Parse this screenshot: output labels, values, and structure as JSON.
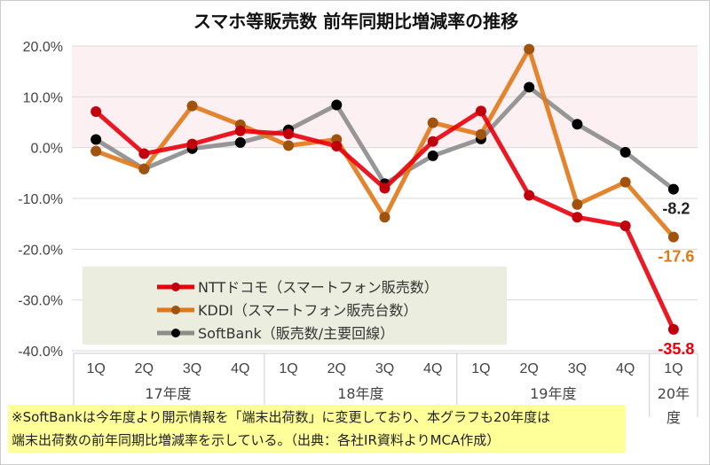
{
  "chart_data": {
    "type": "line",
    "title": "スマホ等販売数 前年同期比増減率の推移",
    "xlabel": "",
    "ylabel": "",
    "ylim": [
      -40,
      20
    ],
    "yticks": [
      "20.0%",
      "10.0%",
      "0.0%",
      "-10.0%",
      "-20.0%",
      "-30.0%",
      "-40.0%"
    ],
    "ytick_values": [
      20,
      10,
      0,
      -10,
      -20,
      -30,
      -40
    ],
    "categories": [
      "1Q",
      "2Q",
      "3Q",
      "4Q",
      "1Q",
      "2Q",
      "3Q",
      "4Q",
      "1Q",
      "2Q",
      "3Q",
      "4Q",
      "1Q"
    ],
    "year_groups": [
      {
        "label": "17年度",
        "count": 4
      },
      {
        "label": "18年度",
        "count": 4
      },
      {
        "label": "19年度",
        "count": 4
      },
      {
        "label": "20年\n度",
        "count": 1
      }
    ],
    "shaded_band": [
      0,
      20
    ],
    "grid": true,
    "legend_position": "bottom-left inside",
    "series": [
      {
        "name": "NTTドコモ（スマートフォン販売数）",
        "color": "#e8000b",
        "marker": "#c0000a",
        "values": [
          7.1,
          -1.2,
          0.7,
          3.3,
          2.7,
          0.3,
          -8.0,
          1.2,
          7.2,
          -9.4,
          -13.7,
          -15.4,
          -35.8
        ],
        "end_label": "-35.8"
      },
      {
        "name": "KDDI（スマートフォン販売台数）",
        "color": "#e07818",
        "marker": "#a0520f",
        "values": [
          -0.7,
          -4.2,
          8.2,
          4.5,
          0.4,
          1.6,
          -13.7,
          4.9,
          2.6,
          19.4,
          -11.2,
          -6.8,
          -17.6
        ],
        "end_label": "-17.6"
      },
      {
        "name": "SoftBank（販売数/主要回線）",
        "color": "#8c8c8c",
        "marker": "#000000",
        "values": [
          1.6,
          -4.2,
          -0.2,
          1.0,
          3.5,
          8.4,
          -7.1,
          -1.6,
          1.7,
          11.9,
          4.6,
          -0.9,
          -8.2
        ],
        "end_label": "-8.2"
      }
    ]
  },
  "note": {
    "line1": "※SoftBankは今年度より開示情報を「端末出荷数」に変更しており、本グラフも20年度は",
    "line2": "端末出荷数の前年同期比増減率を示している。（出典：各社IR資料よりMCA作成）"
  }
}
